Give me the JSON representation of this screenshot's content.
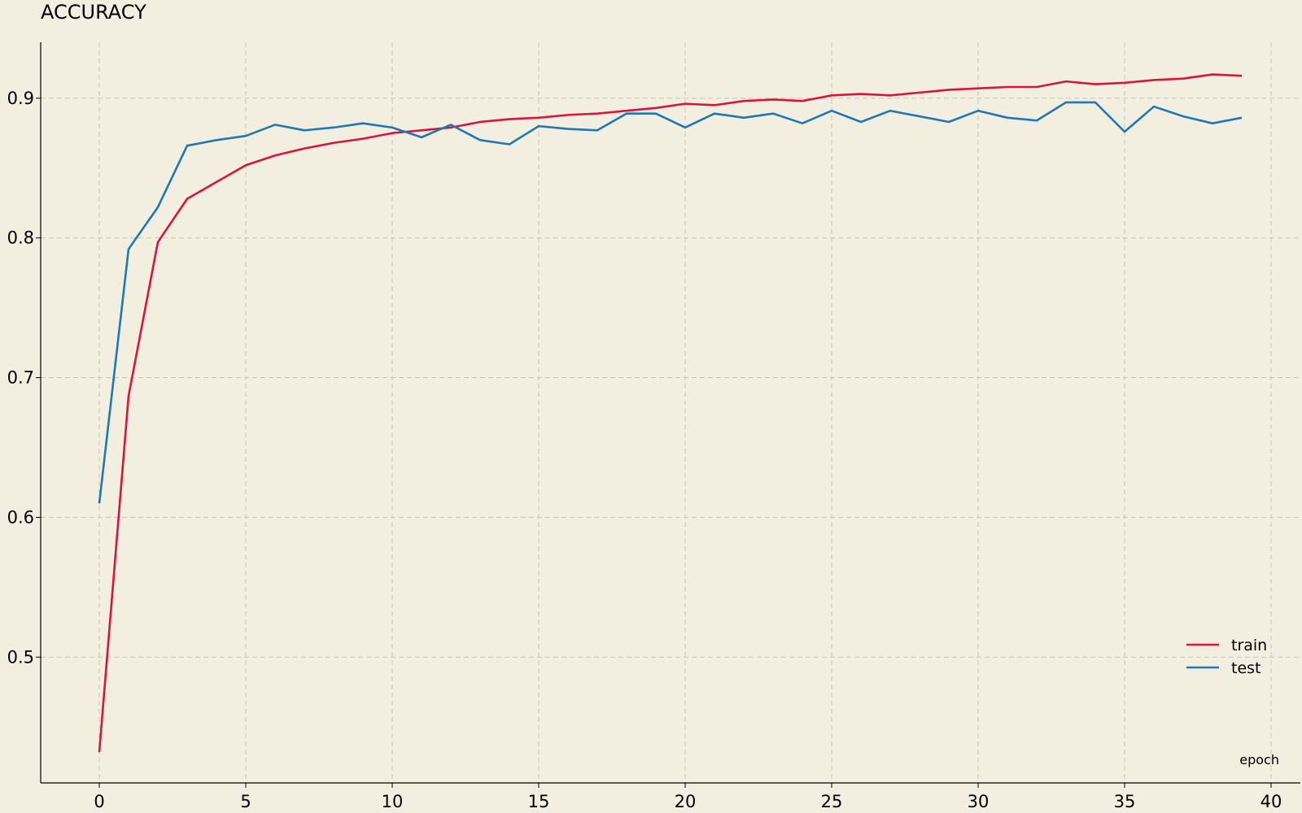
{
  "chart_data": {
    "type": "line",
    "title": "ACCURACY",
    "xlabel": "epoch",
    "ylabel": "",
    "xlim": [
      -2,
      41
    ],
    "ylim": [
      0.41,
      0.94
    ],
    "xticks": [
      0,
      5,
      10,
      15,
      20,
      25,
      30,
      35,
      40
    ],
    "yticks": [
      0.5,
      0.6,
      0.7,
      0.8,
      0.9
    ],
    "xtick_labels": [
      "0",
      "5",
      "10",
      "15",
      "20",
      "25",
      "30",
      "35",
      "40"
    ],
    "ytick_labels": [
      "0.5",
      "0.6",
      "0.7",
      "0.8",
      "0.9"
    ],
    "grid": true,
    "legend_position": "bottom-right",
    "x": [
      0,
      1,
      2,
      3,
      4,
      5,
      6,
      7,
      8,
      9,
      10,
      11,
      12,
      13,
      14,
      15,
      16,
      17,
      18,
      19,
      20,
      21,
      22,
      23,
      24,
      25,
      26,
      27,
      28,
      29,
      30,
      31,
      32,
      33,
      34,
      35,
      36,
      37,
      38,
      39
    ],
    "series": [
      {
        "name": "train",
        "color": "#dc143c",
        "values": [
          0.432,
          0.687,
          0.797,
          0.828,
          0.84,
          0.852,
          0.859,
          0.864,
          0.868,
          0.871,
          0.875,
          0.877,
          0.879,
          0.883,
          0.885,
          0.886,
          0.888,
          0.889,
          0.891,
          0.893,
          0.896,
          0.895,
          0.898,
          0.899,
          0.898,
          0.902,
          0.903,
          0.902,
          0.904,
          0.906,
          0.907,
          0.908,
          0.908,
          0.912,
          0.91,
          0.911,
          0.913,
          0.914,
          0.917,
          0.916
        ]
      },
      {
        "name": "test",
        "color": "#1f77b4",
        "values": [
          0.61,
          0.792,
          0.822,
          0.866,
          0.87,
          0.873,
          0.881,
          0.877,
          0.879,
          0.882,
          0.879,
          0.872,
          0.881,
          0.87,
          0.867,
          0.88,
          0.878,
          0.877,
          0.889,
          0.889,
          0.879,
          0.889,
          0.886,
          0.889,
          0.882,
          0.891,
          0.883,
          0.891,
          0.887,
          0.883,
          0.891,
          0.886,
          0.884,
          0.897,
          0.897,
          0.876,
          0.894,
          0.887,
          0.882,
          0.886
        ]
      }
    ]
  }
}
